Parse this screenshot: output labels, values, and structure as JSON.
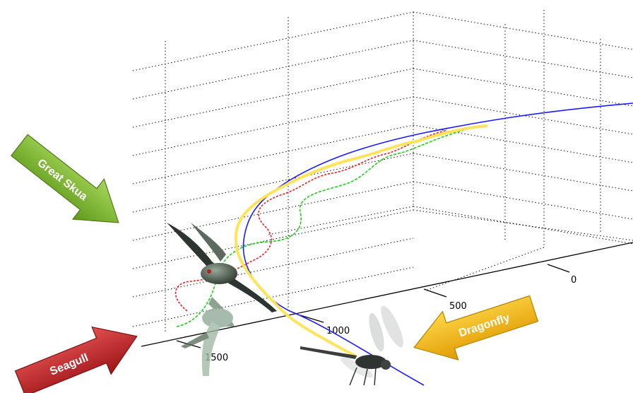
{
  "axis": {
    "ticks": [
      "0",
      "500",
      "1000",
      "1500"
    ]
  },
  "trajectories": [
    {
      "name": "blue",
      "color": "#1a1aff"
    },
    {
      "name": "green",
      "color": "#17d017"
    },
    {
      "name": "red",
      "color": "#ee1c1c"
    },
    {
      "name": "yellow",
      "color": "#ffe35a"
    }
  ],
  "labels": {
    "great_skua": "Great Skua",
    "seagull": "Seagull",
    "dragonfly": "Dragonfly"
  },
  "colors": {
    "great_skua_arrow": "#7fbf2a",
    "seagull_arrow": "#c0282a",
    "dragonfly_arrow": "#f5b800"
  }
}
